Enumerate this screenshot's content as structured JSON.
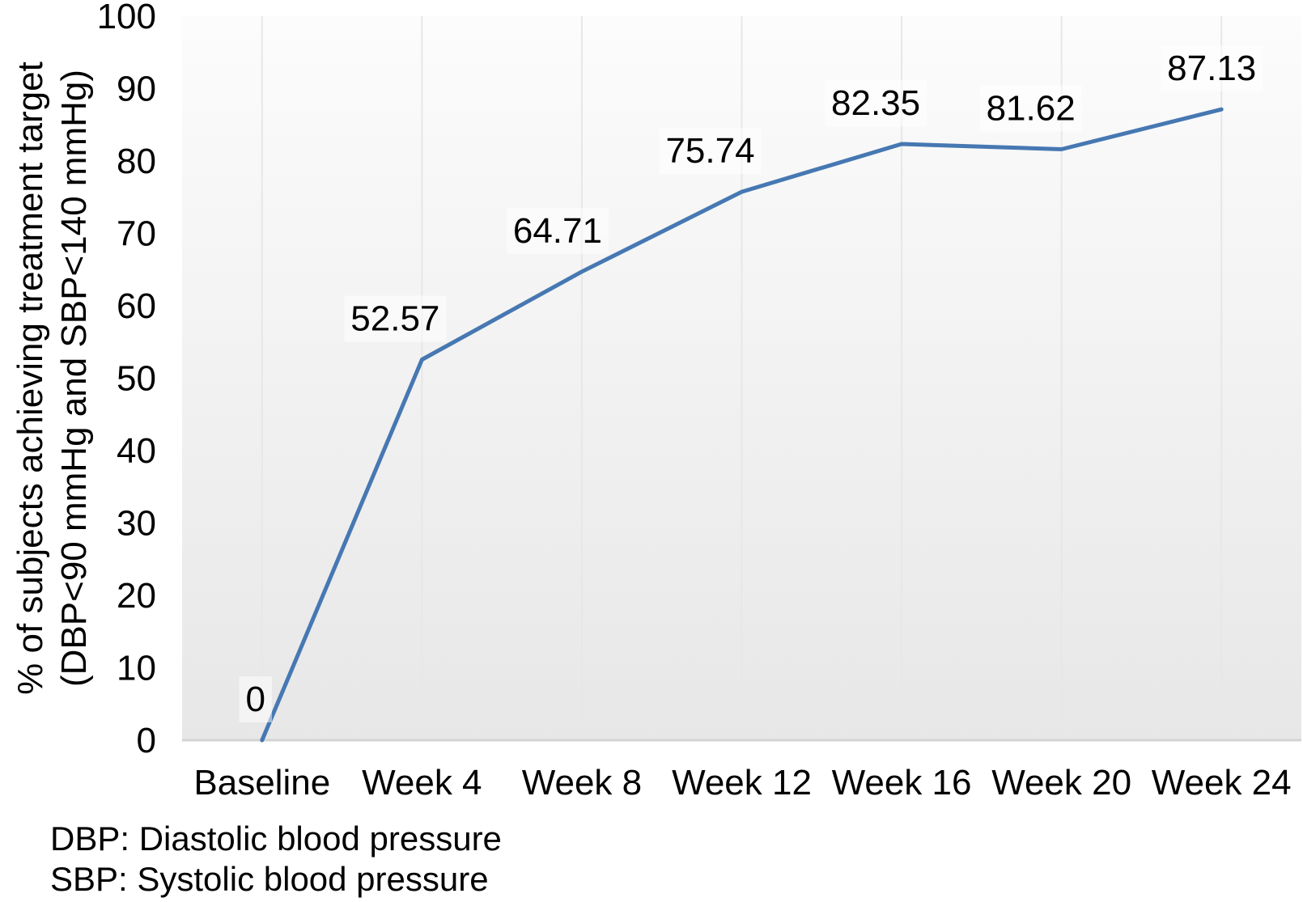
{
  "chart_data": {
    "type": "line",
    "categories": [
      "Baseline",
      "Week 4",
      "Week 8",
      "Week 12",
      "Week 16",
      "Week 20",
      "Week 24"
    ],
    "values": [
      0,
      52.57,
      64.71,
      75.74,
      82.35,
      81.62,
      87.13
    ],
    "data_labels": [
      "0",
      "52.57",
      "64.71",
      "75.74",
      "82.35",
      "81.62",
      "87.13"
    ],
    "title": "",
    "xlabel": "",
    "ylabel_line1": "% of subjects achieving treatment target",
    "ylabel_line2": "(DBP<90 mmHg and SBP<140 mmHg)",
    "ylim": [
      0,
      100
    ],
    "ytick_step": 10,
    "ytick_labels": [
      "0",
      "10",
      "20",
      "30",
      "40",
      "50",
      "60",
      "70",
      "80",
      "90",
      "100"
    ],
    "grid": "vertical-only",
    "legend": "none",
    "colors": {
      "line": "#4678b2",
      "gridline": "#e7e7e7",
      "axis_line": "#d4d4d4",
      "plot_bg_top": "#fcfcfc",
      "plot_bg_bottom": "#e7e7e7",
      "text": "#000000",
      "label_halo": "rgba(255,255,255,0.5)"
    }
  },
  "footnotes": [
    "DBP: Diastolic blood pressure",
    "SBP: Systolic blood pressure"
  ]
}
